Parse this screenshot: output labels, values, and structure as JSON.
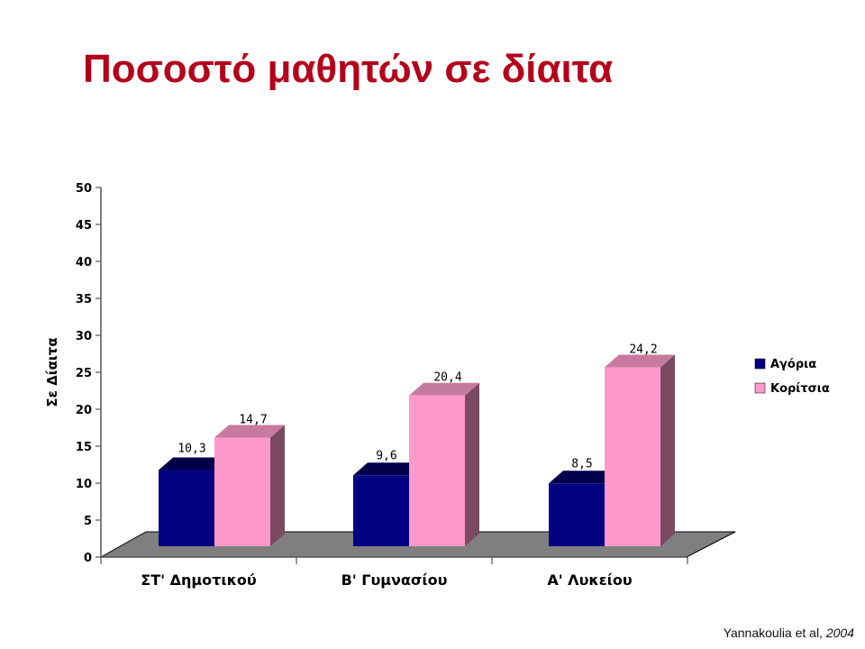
{
  "title": "Ποσοστό μαθητών σε δίαιτα",
  "citation": {
    "author": "Yannakoulia et al,",
    "year": "2004"
  },
  "colors": {
    "boys_front": "#000080",
    "boys_side": "#000052",
    "boys_top": "#00004a",
    "girls_front": "#ff99cc",
    "girls_side": "#7a4a63",
    "girls_top": "#c77aa0",
    "floor": "#7f7f7f",
    "title": "#b3001b"
  },
  "chart_data": {
    "type": "bar",
    "title": "Ποσοστό μαθητών σε δίαιτα",
    "xlabel": "",
    "ylabel": "Σε Δίαιτα",
    "ylim": [
      0,
      50
    ],
    "yticks": [
      0,
      5,
      10,
      15,
      20,
      25,
      30,
      35,
      40,
      45,
      50
    ],
    "categories": [
      "ΣΤ' Δημοτικού",
      "Β' Γυμνασίου",
      "Α' Λυκείου"
    ],
    "series": [
      {
        "name": "Αγόρια",
        "values": [
          10.3,
          9.6,
          8.5
        ],
        "labels": [
          "10,3",
          "9,6",
          "8,5"
        ]
      },
      {
        "name": "Κορίτσια",
        "values": [
          14.7,
          20.4,
          24.2
        ],
        "labels": [
          "14,7",
          "20,4",
          "24,2"
        ]
      }
    ],
    "legend_position": "right",
    "grid": false
  }
}
